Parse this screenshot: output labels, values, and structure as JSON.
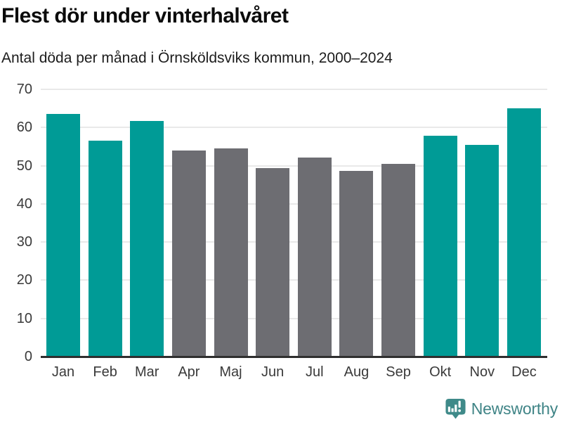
{
  "header": {
    "title": "Flest dör under vinterhalvåret",
    "subtitle": "Antal döda per månad i Örnsköldsviks kommun, 2000–2024"
  },
  "chart_data": {
    "type": "bar",
    "title": "Flest dör under vinterhalvåret",
    "subtitle": "Antal döda per månad i Örnsköldsviks kommun, 2000–2024",
    "categories": [
      "Jan",
      "Feb",
      "Mar",
      "Apr",
      "Maj",
      "Jun",
      "Jul",
      "Aug",
      "Sep",
      "Okt",
      "Nov",
      "Dec"
    ],
    "values": [
      63.5,
      56.5,
      61.8,
      54.0,
      54.5,
      49.4,
      52.1,
      48.7,
      50.5,
      57.9,
      55.4,
      65.0
    ],
    "highlighted_categories": [
      "Jan",
      "Feb",
      "Mar",
      "Okt",
      "Nov",
      "Dec"
    ],
    "colors": {
      "highlight": "#009b96",
      "base": "#6d6d72",
      "gridline": "#e9e9e9",
      "axis": "#2f2f2f",
      "tick_text": "#3a3a3a"
    },
    "xlabel": "",
    "ylabel": "",
    "ylim": [
      0,
      70
    ],
    "yticks": [
      0,
      10,
      20,
      30,
      40,
      50,
      60,
      70
    ],
    "grid": true,
    "legend": false
  },
  "footer": {
    "brand": "Newsworthy",
    "brand_color": "#3f8486",
    "logo_color": "#3f8a89",
    "logo_icon": "bar-chart-speech-bubble-icon"
  }
}
